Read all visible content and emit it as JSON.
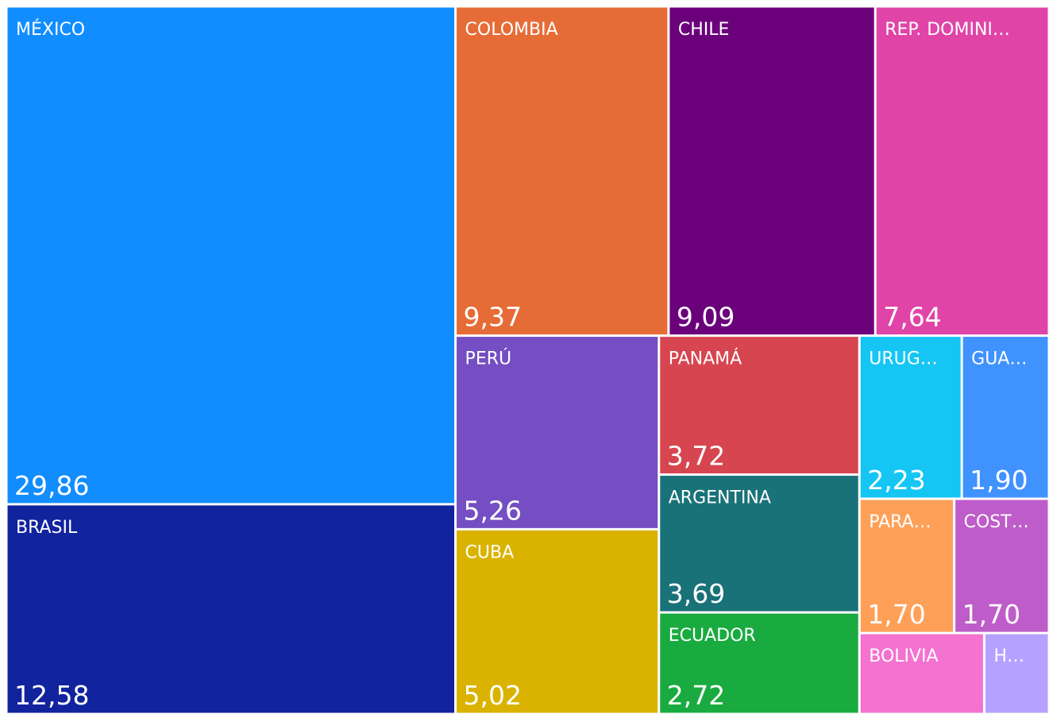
{
  "chart_data": {
    "type": "treemap",
    "categories": [
      "MÉXICO",
      "BRASIL",
      "COLOMBIA",
      "CHILE",
      "REP. DOMINI…",
      "PERÚ",
      "CUBA",
      "PANAMÁ",
      "ARGENTINA",
      "ECUADOR",
      "URUG…",
      "GUA…",
      "PARA…",
      "COST…",
      "BOLIVIA",
      "H…"
    ],
    "values": [
      29.86,
      12.58,
      9.37,
      9.09,
      7.64,
      5.26,
      5.02,
      3.72,
      3.69,
      2.72,
      2.23,
      1.9,
      1.7,
      1.7,
      1.35,
      0.7
    ],
    "value_labels": [
      "29,86",
      "12,58",
      "9,37",
      "9,09",
      "7,64",
      "5,26",
      "5,02",
      "3,72",
      "3,69",
      "2,72",
      "2,23",
      "1,90",
      "1,70",
      "1,70",
      null,
      null
    ],
    "colors": [
      "#118dff",
      "#12239e",
      "#e66c37",
      "#6b007b",
      "#e044a7",
      "#744ec2",
      "#d9b300",
      "#d64550",
      "#197278",
      "#1aab40",
      "#15c6f4",
      "#4092ff",
      "#ffa058",
      "#be5dc9",
      "#f472d0",
      "#b5a1ff"
    ]
  }
}
